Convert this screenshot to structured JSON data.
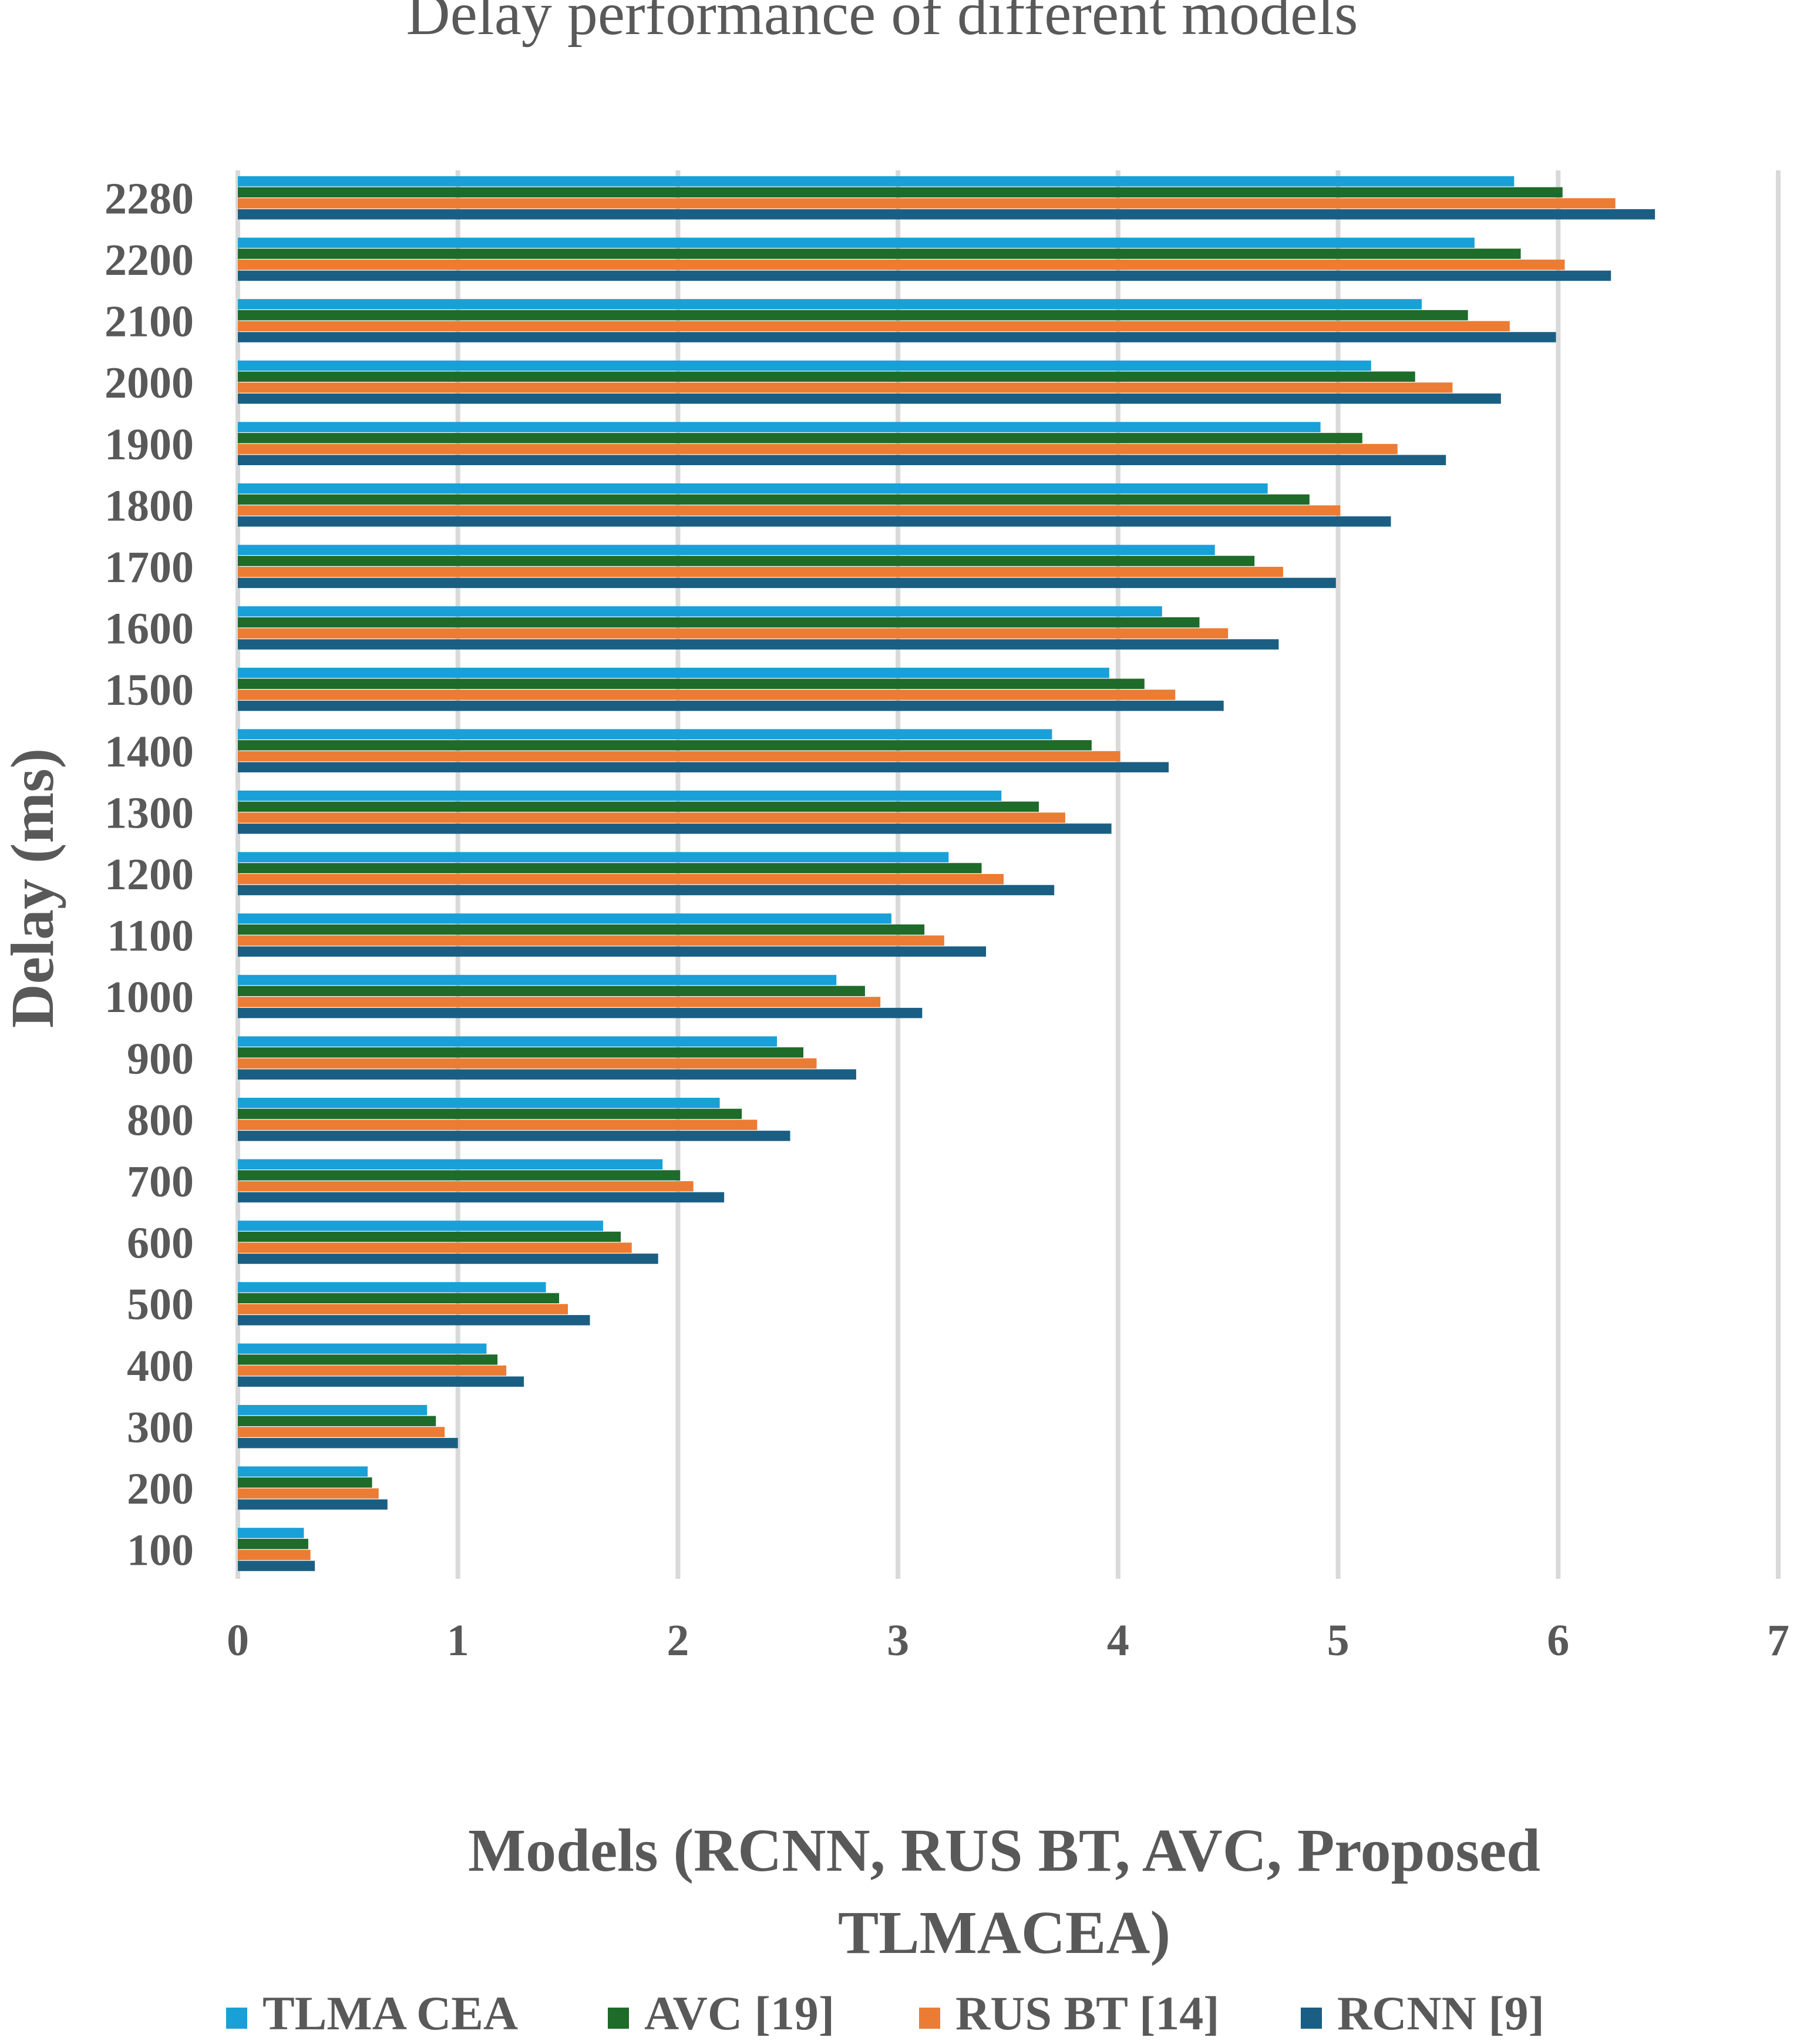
{
  "chart_data": {
    "type": "bar",
    "orientation": "horizontal",
    "title": "Delay performance of different models",
    "ylabel": "Delay (ms)",
    "xlabel_lines": [
      "Models (RCNN, RUS BT, AVC, Proposed",
      "TLMACEA)"
    ],
    "xlim": [
      0,
      7
    ],
    "x_ticks": [
      "0",
      "1",
      "2",
      "3",
      "4",
      "5",
      "6",
      "7"
    ],
    "grid": "vertical",
    "legend_position": "bottom",
    "categories": [
      "2280",
      "2200",
      "2100",
      "2000",
      "1900",
      "1800",
      "1700",
      "1600",
      "1500",
      "1400",
      "1300",
      "1200",
      "1100",
      "1000",
      "900",
      "800",
      "700",
      "600",
      "500",
      "400",
      "300",
      "200",
      "100"
    ],
    "series": [
      {
        "name": "TLMA CEA",
        "color": "#1aa0d8",
        "values": [
          5.8,
          5.62,
          5.38,
          5.15,
          4.92,
          4.68,
          4.44,
          4.2,
          3.96,
          3.7,
          3.47,
          3.23,
          2.97,
          2.72,
          2.45,
          2.19,
          1.93,
          1.66,
          1.4,
          1.13,
          0.86,
          0.59,
          0.3
        ]
      },
      {
        "name": "AVC [19]",
        "color": "#1e6b2a",
        "values": [
          6.02,
          5.83,
          5.59,
          5.35,
          5.11,
          4.87,
          4.62,
          4.37,
          4.12,
          3.88,
          3.64,
          3.38,
          3.12,
          2.85,
          2.57,
          2.29,
          2.01,
          1.74,
          1.46,
          1.18,
          0.9,
          0.61,
          0.32
        ]
      },
      {
        "name": "RUS BT [14]",
        "color": "#ec7c33",
        "values": [
          6.26,
          6.03,
          5.78,
          5.52,
          5.27,
          5.01,
          4.75,
          4.5,
          4.26,
          4.01,
          3.76,
          3.48,
          3.21,
          2.92,
          2.63,
          2.36,
          2.07,
          1.79,
          1.5,
          1.22,
          0.94,
          0.64,
          0.33
        ]
      },
      {
        "name": "RCNN [9]",
        "color": "#1a5f83",
        "values": [
          6.44,
          6.24,
          5.99,
          5.74,
          5.49,
          5.24,
          4.99,
          4.73,
          4.48,
          4.23,
          3.97,
          3.71,
          3.4,
          3.11,
          2.81,
          2.51,
          2.21,
          1.91,
          1.6,
          1.3,
          1.0,
          0.68,
          0.35
        ]
      }
    ]
  }
}
